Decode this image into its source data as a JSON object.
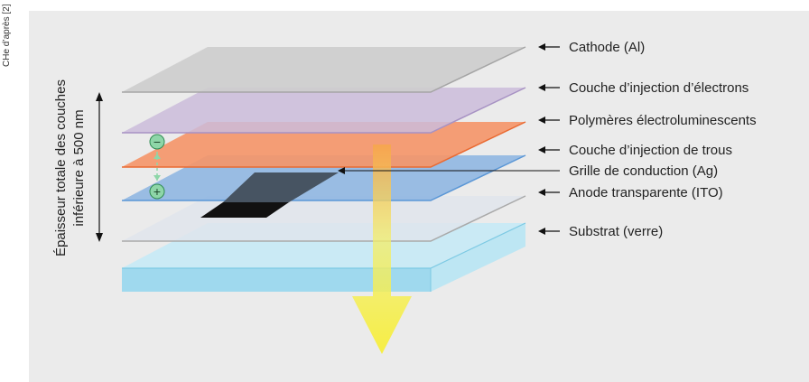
{
  "credit": "CHe d’après [2]",
  "thickness_label": {
    "line1": "Épaisseur totale des couches",
    "line2": "inférieure à 500 nm"
  },
  "charges": {
    "negative": "−",
    "positive": "+"
  },
  "layers": [
    {
      "key": "cathode",
      "label": "Cathode (Al)",
      "color": "#c9c9c9"
    },
    {
      "key": "electron_injection",
      "label": "Couche d’injection d’électrons",
      "color": "#c8b9d8"
    },
    {
      "key": "polymers",
      "label": "Polymères électroluminescents",
      "color": "#f39b6d"
    },
    {
      "key": "hole_injection",
      "label": "Couche d’injection de trous",
      "color": "#8eb6e2"
    },
    {
      "key": "grid",
      "label": "Grille de conduction (Ag)",
      "color": "#2a2a2a"
    },
    {
      "key": "anode",
      "label": "Anode transparente (ITO)",
      "color": "#dde3ea"
    },
    {
      "key": "substrate",
      "label": "Substrat (verre)",
      "color": "#a8dff0"
    }
  ]
}
